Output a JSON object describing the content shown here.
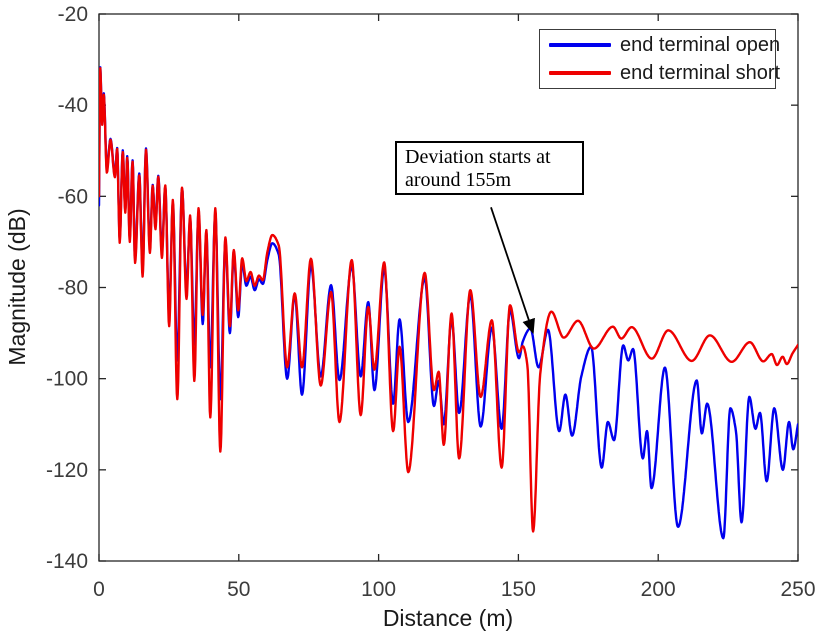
{
  "figure": {
    "background": "#ffffff",
    "axis_color": "#262626",
    "tick_label_color": "#3c3c3c"
  },
  "annotation_box": {
    "line1": "Deviation starts at",
    "line2": "around 155m"
  },
  "chart_data": {
    "type": "line",
    "title": "",
    "xlabel": "Distance (m)",
    "ylabel": "Magnitude (dB)",
    "xlim": [
      0,
      250
    ],
    "ylim": [
      -140,
      -20
    ],
    "x_ticks": [
      0,
      50,
      100,
      150,
      200,
      250
    ],
    "y_ticks": [
      -20,
      -40,
      -60,
      -80,
      -100,
      -120,
      -140
    ],
    "grid": false,
    "legend_position": "northeast",
    "series": [
      {
        "name": "end terminal open",
        "color": "#0000ee",
        "points": [
          [
            0,
            -62
          ],
          [
            0.45,
            -31.7
          ],
          [
            1.15,
            -44
          ],
          [
            1.7,
            -37.4
          ],
          [
            2.8,
            -54
          ],
          [
            4.1,
            -47.4
          ],
          [
            5.7,
            -55.4
          ],
          [
            6.5,
            -49.4
          ],
          [
            7.4,
            -69.3
          ],
          [
            8.5,
            -49.9
          ],
          [
            9.4,
            -63
          ],
          [
            10.1,
            -51.2
          ],
          [
            11,
            -69
          ],
          [
            12,
            -52.1
          ],
          [
            12.9,
            -73.5
          ],
          [
            14.4,
            -55
          ],
          [
            15.6,
            -76
          ],
          [
            16.8,
            -49.5
          ],
          [
            18.2,
            -71
          ],
          [
            19.2,
            -57.5
          ],
          [
            20.2,
            -66.5
          ],
          [
            21.2,
            -55.5
          ],
          [
            22.5,
            -72
          ],
          [
            23.7,
            -58
          ],
          [
            25.1,
            -86
          ],
          [
            26.4,
            -61.5
          ],
          [
            28,
            -96
          ],
          [
            29.7,
            -58.3
          ],
          [
            31.3,
            -80.5
          ],
          [
            32.6,
            -65
          ],
          [
            34.1,
            -92.5
          ],
          [
            35.6,
            -63.5
          ],
          [
            37.1,
            -88
          ],
          [
            38.4,
            -68
          ],
          [
            39.8,
            -97.5
          ],
          [
            41.6,
            -63.6
          ],
          [
            43.4,
            -104.5
          ],
          [
            45.2,
            -70
          ],
          [
            46.8,
            -90
          ],
          [
            48.2,
            -72.6
          ],
          [
            49.8,
            -86.5
          ],
          [
            51.2,
            -74.6
          ],
          [
            52.7,
            -79.6
          ],
          [
            54.2,
            -77.6
          ],
          [
            55.7,
            -80.6
          ],
          [
            57.2,
            -78.2
          ],
          [
            58.6,
            -79.2
          ],
          [
            60.2,
            -74
          ],
          [
            62,
            -70.3
          ],
          [
            64.3,
            -72.8
          ],
          [
            67.3,
            -100
          ],
          [
            70,
            -81.6
          ],
          [
            72.6,
            -103.5
          ],
          [
            75.8,
            -75.1
          ],
          [
            79.3,
            -99.5
          ],
          [
            83,
            -79.5
          ],
          [
            86,
            -100.3
          ],
          [
            90.4,
            -75.3
          ],
          [
            93.6,
            -99.5
          ],
          [
            96.3,
            -83.2
          ],
          [
            98.5,
            -102.5
          ],
          [
            102,
            -75.8
          ],
          [
            105.2,
            -105.5
          ],
          [
            107.5,
            -87
          ],
          [
            110.6,
            -109.5
          ],
          [
            116.5,
            -78
          ],
          [
            119.8,
            -106
          ],
          [
            121.5,
            -100.5
          ],
          [
            123.3,
            -110
          ],
          [
            126.1,
            -87
          ],
          [
            128.8,
            -107.5
          ],
          [
            132.8,
            -81.7
          ],
          [
            136.5,
            -110.5
          ],
          [
            140.5,
            -88.8
          ],
          [
            144,
            -111
          ],
          [
            147,
            -85
          ],
          [
            150.2,
            -95.5
          ],
          [
            151.6,
            -91.8
          ],
          [
            154.3,
            -89
          ],
          [
            157.2,
            -97.5
          ],
          [
            160.6,
            -89.3
          ],
          [
            164.6,
            -111.5
          ],
          [
            166.8,
            -103.5
          ],
          [
            169.2,
            -112.5
          ],
          [
            172.5,
            -99.5
          ],
          [
            176,
            -93
          ],
          [
            179.8,
            -119.5
          ],
          [
            182,
            -109.5
          ],
          [
            184.2,
            -113.5
          ],
          [
            187.5,
            -92.7
          ],
          [
            189.3,
            -96
          ],
          [
            191,
            -93.5
          ],
          [
            194.5,
            -117.5
          ],
          [
            196,
            -111.5
          ],
          [
            197.6,
            -124
          ],
          [
            202.4,
            -97.6
          ],
          [
            207.1,
            -132.5
          ],
          [
            213.8,
            -100.4
          ],
          [
            215.6,
            -112
          ],
          [
            217.5,
            -105.5
          ],
          [
            223.3,
            -135
          ],
          [
            225.8,
            -106.5
          ],
          [
            227.8,
            -111.5
          ],
          [
            229.8,
            -131.5
          ],
          [
            232.6,
            -104
          ],
          [
            234.8,
            -111
          ],
          [
            236.4,
            -107.5
          ],
          [
            238.8,
            -122.5
          ],
          [
            241.5,
            -106.5
          ],
          [
            244.6,
            -120
          ],
          [
            246.8,
            -109.5
          ],
          [
            248.3,
            -115.5
          ],
          [
            250,
            -110
          ]
        ]
      },
      {
        "name": "end terminal short",
        "color": "#ee0000",
        "points": [
          [
            0,
            -60
          ],
          [
            0.45,
            -31.9
          ],
          [
            1.15,
            -44.3
          ],
          [
            1.7,
            -37.7
          ],
          [
            2.8,
            -54.8
          ],
          [
            4.1,
            -47.6
          ],
          [
            5.7,
            -55.8
          ],
          [
            6.5,
            -49.6
          ],
          [
            7.4,
            -70.2
          ],
          [
            8.5,
            -50.3
          ],
          [
            9.4,
            -63.6
          ],
          [
            10.1,
            -51.6
          ],
          [
            11,
            -70
          ],
          [
            12,
            -52.4
          ],
          [
            12.9,
            -74.6
          ],
          [
            14.4,
            -55.4
          ],
          [
            15.6,
            -77.6
          ],
          [
            16.8,
            -49.8
          ],
          [
            18.2,
            -72.4
          ],
          [
            19.2,
            -57.7
          ],
          [
            20.2,
            -67.2
          ],
          [
            21.2,
            -55.7
          ],
          [
            22.5,
            -73.5
          ],
          [
            23.7,
            -57.6
          ],
          [
            25.1,
            -88.5
          ],
          [
            26.4,
            -60.8
          ],
          [
            28,
            -104.5
          ],
          [
            29.7,
            -58.1
          ],
          [
            31.3,
            -82.5
          ],
          [
            32.6,
            -64.2
          ],
          [
            34.1,
            -100.5
          ],
          [
            35.6,
            -62.6
          ],
          [
            37.1,
            -86
          ],
          [
            38.4,
            -67.4
          ],
          [
            39.8,
            -108.5
          ],
          [
            41.6,
            -62.6
          ],
          [
            43.4,
            -116
          ],
          [
            45.2,
            -69
          ],
          [
            46.8,
            -88.5
          ],
          [
            48.2,
            -71.8
          ],
          [
            49.8,
            -85
          ],
          [
            51.2,
            -73.6
          ],
          [
            52.7,
            -78.6
          ],
          [
            54.2,
            -76.6
          ],
          [
            55.7,
            -79.6
          ],
          [
            57.2,
            -77.4
          ],
          [
            58.6,
            -78.4
          ],
          [
            60.2,
            -72.3
          ],
          [
            62,
            -68.5
          ],
          [
            64.3,
            -70.8
          ],
          [
            67.3,
            -97.5
          ],
          [
            70,
            -81.3
          ],
          [
            72.6,
            -97.5
          ],
          [
            75.8,
            -73.7
          ],
          [
            79.3,
            -101.5
          ],
          [
            83,
            -81
          ],
          [
            86,
            -109.5
          ],
          [
            90.4,
            -74
          ],
          [
            93.6,
            -108
          ],
          [
            96.3,
            -84.3
          ],
          [
            98.5,
            -98
          ],
          [
            102,
            -74.5
          ],
          [
            105.2,
            -111.5
          ],
          [
            107.5,
            -93
          ],
          [
            110.6,
            -120.5
          ],
          [
            116.5,
            -76.8
          ],
          [
            119.8,
            -102.5
          ],
          [
            121.5,
            -98.5
          ],
          [
            123.3,
            -114.5
          ],
          [
            126.1,
            -85.7
          ],
          [
            128.8,
            -117.5
          ],
          [
            132.8,
            -80.6
          ],
          [
            136.5,
            -104
          ],
          [
            140.5,
            -87.2
          ],
          [
            144,
            -119.5
          ],
          [
            147,
            -83.9
          ],
          [
            150.2,
            -94.2
          ],
          [
            151.6,
            -92.9
          ],
          [
            153.2,
            -97
          ],
          [
            155.25,
            -133.5
          ],
          [
            157.8,
            -99
          ],
          [
            161.8,
            -85.3
          ],
          [
            166.2,
            -91
          ],
          [
            171.3,
            -87.3
          ],
          [
            177,
            -93.4
          ],
          [
            183.8,
            -88.6
          ],
          [
            186.8,
            -91.2
          ],
          [
            190.5,
            -88.7
          ],
          [
            197.7,
            -95.6
          ],
          [
            203.6,
            -89.4
          ],
          [
            212,
            -96.1
          ],
          [
            218.5,
            -90.5
          ],
          [
            226.3,
            -96.3
          ],
          [
            232.8,
            -92
          ],
          [
            237.6,
            -96.2
          ],
          [
            240.6,
            -94.6
          ],
          [
            242.5,
            -97
          ],
          [
            244.5,
            -95.2
          ],
          [
            246,
            -96.8
          ],
          [
            248,
            -94.5
          ],
          [
            250,
            -92.6
          ]
        ]
      }
    ],
    "annotations": [
      {
        "text": "Deviation starts at around 155m",
        "arrow": {
          "from": [
            140.2,
            -62.4
          ],
          "to": [
            155.2,
            -89.8
          ]
        }
      }
    ]
  }
}
